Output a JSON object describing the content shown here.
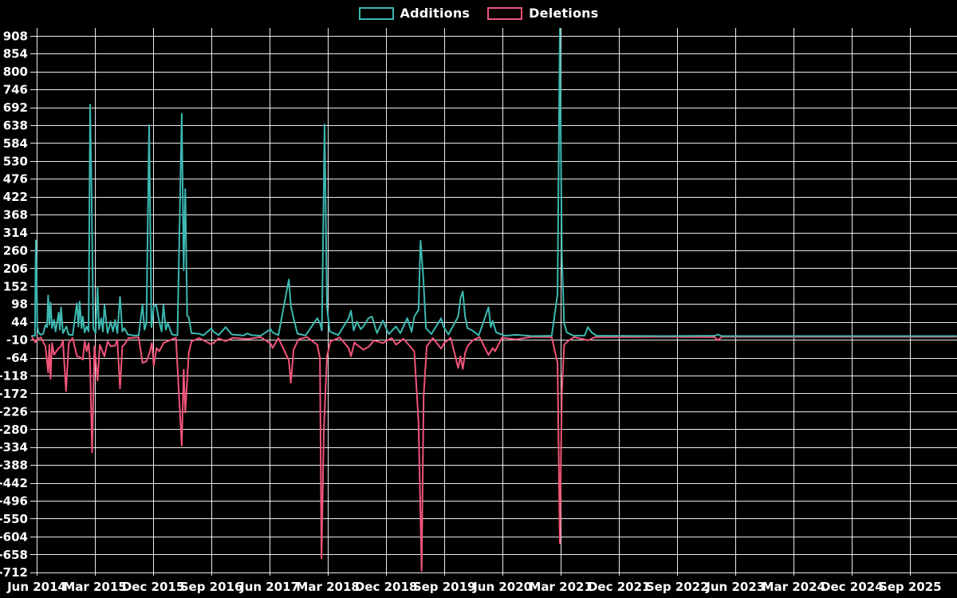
{
  "chart_data": {
    "type": "line",
    "title": "",
    "legend_position": "top-center",
    "grid": true,
    "background_color": "#000000",
    "text_color": "#ffffff",
    "grid_color": "#ffffff",
    "legend": [
      {
        "name": "Additions",
        "color": "#3cb8b0"
      },
      {
        "name": "Deletions",
        "color": "#f25579"
      }
    ],
    "x_axis": {
      "tick_labels": [
        "Jun 2014",
        "Mar 2015",
        "Dec 2015",
        "Sep 2016",
        "Jun 2017",
        "Mar 2018",
        "Dec 2018",
        "Sep 2019",
        "Jun 2020",
        "Mar 2021",
        "Dec 2021",
        "Sep 2022",
        "Jun 2023",
        "Mar 2024",
        "Dec 2024",
        "Sep 2025"
      ],
      "tick_years": [
        2014.417,
        2015.167,
        2015.917,
        2016.667,
        2017.417,
        2018.167,
        2018.917,
        2019.667,
        2020.417,
        2021.167,
        2021.917,
        2022.667,
        2023.417,
        2024.167,
        2024.917,
        2025.667
      ],
      "range_years": [
        2014.355,
        2026.27
      ]
    },
    "y_axis": {
      "ticks": [
        908,
        854,
        800,
        746,
        692,
        638,
        584,
        530,
        476,
        422,
        368,
        314,
        260,
        206,
        152,
        98,
        44,
        -10,
        -64,
        -118,
        -172,
        -226,
        -280,
        -334,
        -388,
        -442,
        -496,
        -550,
        -604,
        -658,
        -712
      ],
      "range": [
        -725,
        935
      ]
    },
    "series": [
      {
        "name": "Additions",
        "color": "#3cb8b0",
        "points": [
          [
            2014.355,
            2
          ],
          [
            2014.395,
            2
          ],
          [
            2014.405,
            290
          ],
          [
            2014.415,
            215
          ],
          [
            2014.425,
            30
          ],
          [
            2014.44,
            12
          ],
          [
            2014.47,
            5
          ],
          [
            2014.5,
            8
          ],
          [
            2014.53,
            35
          ],
          [
            2014.55,
            28
          ],
          [
            2014.565,
            124
          ],
          [
            2014.58,
            35
          ],
          [
            2014.595,
            103
          ],
          [
            2014.615,
            25
          ],
          [
            2014.64,
            50
          ],
          [
            2014.66,
            15
          ],
          [
            2014.7,
            72
          ],
          [
            2014.715,
            20
          ],
          [
            2014.73,
            88
          ],
          [
            2014.755,
            10
          ],
          [
            2014.8,
            30
          ],
          [
            2014.825,
            6
          ],
          [
            2014.88,
            4
          ],
          [
            2014.935,
            100
          ],
          [
            2014.955,
            30
          ],
          [
            2014.97,
            105
          ],
          [
            2014.995,
            25
          ],
          [
            2015.01,
            60
          ],
          [
            2015.035,
            12
          ],
          [
            2015.06,
            30
          ],
          [
            2015.085,
            15
          ],
          [
            2015.105,
            700
          ],
          [
            2015.125,
            410
          ],
          [
            2015.145,
            25
          ],
          [
            2015.175,
            10
          ],
          [
            2015.2,
            150
          ],
          [
            2015.22,
            22
          ],
          [
            2015.25,
            55
          ],
          [
            2015.27,
            15
          ],
          [
            2015.29,
            95
          ],
          [
            2015.33,
            10
          ],
          [
            2015.37,
            45
          ],
          [
            2015.4,
            15
          ],
          [
            2015.425,
            50
          ],
          [
            2015.455,
            10
          ],
          [
            2015.49,
            120
          ],
          [
            2015.52,
            15
          ],
          [
            2015.545,
            25
          ],
          [
            2015.59,
            6
          ],
          [
            2015.66,
            3
          ],
          [
            2015.73,
            3
          ],
          [
            2015.78,
            95
          ],
          [
            2015.805,
            20
          ],
          [
            2015.83,
            40
          ],
          [
            2015.865,
            638
          ],
          [
            2015.895,
            28
          ],
          [
            2015.925,
            90
          ],
          [
            2015.955,
            95
          ],
          [
            2015.995,
            45
          ],
          [
            2016.025,
            15
          ],
          [
            2016.05,
            95
          ],
          [
            2016.08,
            20
          ],
          [
            2016.105,
            40
          ],
          [
            2016.16,
            6
          ],
          [
            2016.23,
            3
          ],
          [
            2016.285,
            672
          ],
          [
            2016.31,
            200
          ],
          [
            2016.33,
            445
          ],
          [
            2016.355,
            62
          ],
          [
            2016.375,
            58
          ],
          [
            2016.41,
            10
          ],
          [
            2016.51,
            8
          ],
          [
            2016.56,
            3
          ],
          [
            2016.665,
            24
          ],
          [
            2016.695,
            14
          ],
          [
            2016.76,
            4
          ],
          [
            2016.85,
            28
          ],
          [
            2016.93,
            6
          ],
          [
            2017.08,
            3
          ],
          [
            2017.13,
            9
          ],
          [
            2017.18,
            4
          ],
          [
            2017.3,
            2
          ],
          [
            2017.43,
            22
          ],
          [
            2017.455,
            12
          ],
          [
            2017.53,
            4
          ],
          [
            2017.665,
            172
          ],
          [
            2017.69,
            92
          ],
          [
            2017.725,
            55
          ],
          [
            2017.775,
            8
          ],
          [
            2017.88,
            3
          ],
          [
            2018.03,
            55
          ],
          [
            2018.065,
            40
          ],
          [
            2018.09,
            18
          ],
          [
            2018.125,
            640
          ],
          [
            2018.155,
            90
          ],
          [
            2018.19,
            15
          ],
          [
            2018.3,
            4
          ],
          [
            2018.435,
            55
          ],
          [
            2018.465,
            78
          ],
          [
            2018.5,
            18
          ],
          [
            2018.54,
            45
          ],
          [
            2018.59,
            22
          ],
          [
            2018.625,
            30
          ],
          [
            2018.69,
            55
          ],
          [
            2018.735,
            60
          ],
          [
            2018.8,
            10
          ],
          [
            2018.875,
            48
          ],
          [
            2018.95,
            7
          ],
          [
            2019.045,
            30
          ],
          [
            2019.1,
            10
          ],
          [
            2019.19,
            55
          ],
          [
            2019.245,
            14
          ],
          [
            2019.28,
            60
          ],
          [
            2019.335,
            80
          ],
          [
            2019.36,
            289
          ],
          [
            2019.395,
            180
          ],
          [
            2019.43,
            25
          ],
          [
            2019.5,
            7
          ],
          [
            2019.625,
            55
          ],
          [
            2019.655,
            30
          ],
          [
            2019.72,
            6
          ],
          [
            2019.845,
            60
          ],
          [
            2019.875,
            115
          ],
          [
            2019.905,
            136
          ],
          [
            2019.935,
            60
          ],
          [
            2019.965,
            25
          ],
          [
            2020.03,
            18
          ],
          [
            2020.11,
            3
          ],
          [
            2020.235,
            88
          ],
          [
            2020.265,
            28
          ],
          [
            2020.29,
            47
          ],
          [
            2020.335,
            12
          ],
          [
            2020.45,
            2
          ],
          [
            2020.59,
            5
          ],
          [
            2020.8,
            1
          ],
          [
            2021.05,
            2
          ],
          [
            2021.125,
            127
          ],
          [
            2021.155,
            930
          ],
          [
            2021.18,
            245
          ],
          [
            2021.21,
            40
          ],
          [
            2021.245,
            12
          ],
          [
            2021.33,
            2
          ],
          [
            2021.475,
            3
          ],
          [
            2021.515,
            28
          ],
          [
            2021.565,
            12
          ],
          [
            2021.63,
            2
          ],
          [
            2022.5,
            1
          ],
          [
            2023.15,
            2
          ],
          [
            2023.19,
            6
          ],
          [
            2023.24,
            1
          ],
          [
            2024.5,
            1
          ],
          [
            2026.26,
            1
          ]
        ]
      },
      {
        "name": "Deletions",
        "color": "#f25579",
        "points": [
          [
            2014.355,
            -1
          ],
          [
            2014.4,
            -18
          ],
          [
            2014.425,
            -8
          ],
          [
            2014.47,
            -3
          ],
          [
            2014.53,
            -30
          ],
          [
            2014.565,
            -109
          ],
          [
            2014.58,
            -25
          ],
          [
            2014.595,
            -128
          ],
          [
            2014.615,
            -20
          ],
          [
            2014.64,
            -55
          ],
          [
            2014.7,
            -35
          ],
          [
            2014.73,
            -30
          ],
          [
            2014.755,
            -12
          ],
          [
            2014.795,
            -165
          ],
          [
            2014.83,
            -20
          ],
          [
            2014.88,
            -5
          ],
          [
            2014.935,
            -60
          ],
          [
            2014.97,
            -62
          ],
          [
            2015.01,
            -70
          ],
          [
            2015.035,
            -15
          ],
          [
            2015.06,
            -45
          ],
          [
            2015.085,
            -20
          ],
          [
            2015.105,
            -80
          ],
          [
            2015.13,
            -350
          ],
          [
            2015.16,
            -30
          ],
          [
            2015.2,
            -133
          ],
          [
            2015.23,
            -25
          ],
          [
            2015.255,
            -40
          ],
          [
            2015.29,
            -60
          ],
          [
            2015.33,
            -15
          ],
          [
            2015.37,
            -30
          ],
          [
            2015.425,
            -28
          ],
          [
            2015.455,
            -10
          ],
          [
            2015.49,
            -157
          ],
          [
            2015.52,
            -30
          ],
          [
            2015.545,
            -25
          ],
          [
            2015.6,
            -5
          ],
          [
            2015.73,
            -3
          ],
          [
            2015.78,
            -80
          ],
          [
            2015.83,
            -75
          ],
          [
            2015.87,
            -50
          ],
          [
            2015.9,
            -20
          ],
          [
            2015.925,
            -88
          ],
          [
            2015.96,
            -35
          ],
          [
            2015.995,
            -45
          ],
          [
            2016.05,
            -20
          ],
          [
            2016.105,
            -14
          ],
          [
            2016.21,
            -4
          ],
          [
            2016.285,
            -330
          ],
          [
            2016.31,
            -100
          ],
          [
            2016.33,
            -230
          ],
          [
            2016.375,
            -50
          ],
          [
            2016.41,
            -15
          ],
          [
            2016.51,
            -5
          ],
          [
            2016.665,
            -24
          ],
          [
            2016.695,
            -20
          ],
          [
            2016.76,
            -6
          ],
          [
            2016.85,
            -14
          ],
          [
            2016.95,
            -4
          ],
          [
            2017.13,
            -8
          ],
          [
            2017.3,
            -2
          ],
          [
            2017.43,
            -22
          ],
          [
            2017.455,
            -35
          ],
          [
            2017.53,
            -5
          ],
          [
            2017.665,
            -72
          ],
          [
            2017.69,
            -140
          ],
          [
            2017.725,
            -40
          ],
          [
            2017.79,
            -8
          ],
          [
            2017.9,
            -2
          ],
          [
            2018.03,
            -25
          ],
          [
            2018.065,
            -65
          ],
          [
            2018.085,
            -670
          ],
          [
            2018.115,
            -280
          ],
          [
            2018.155,
            -60
          ],
          [
            2018.2,
            -15
          ],
          [
            2018.32,
            -3
          ],
          [
            2018.435,
            -35
          ],
          [
            2018.465,
            -60
          ],
          [
            2018.51,
            -18
          ],
          [
            2018.54,
            -25
          ],
          [
            2018.625,
            -40
          ],
          [
            2018.7,
            -30
          ],
          [
            2018.76,
            -12
          ],
          [
            2018.875,
            -20
          ],
          [
            2018.99,
            -5
          ],
          [
            2019.045,
            -25
          ],
          [
            2019.14,
            -7
          ],
          [
            2019.19,
            -20
          ],
          [
            2019.28,
            -45
          ],
          [
            2019.335,
            -258
          ],
          [
            2019.375,
            -708
          ],
          [
            2019.4,
            -180
          ],
          [
            2019.44,
            -30
          ],
          [
            2019.52,
            -5
          ],
          [
            2019.625,
            -37
          ],
          [
            2019.665,
            -20
          ],
          [
            2019.75,
            -4
          ],
          [
            2019.845,
            -95
          ],
          [
            2019.875,
            -60
          ],
          [
            2019.905,
            -98
          ],
          [
            2019.935,
            -50
          ],
          [
            2019.965,
            -30
          ],
          [
            2020.03,
            -12
          ],
          [
            2020.12,
            -2
          ],
          [
            2020.235,
            -56
          ],
          [
            2020.29,
            -35
          ],
          [
            2020.32,
            -45
          ],
          [
            2020.41,
            -4
          ],
          [
            2020.59,
            -9
          ],
          [
            2020.8,
            -1
          ],
          [
            2021.05,
            -2
          ],
          [
            2021.125,
            -80
          ],
          [
            2021.155,
            -625
          ],
          [
            2021.18,
            -169
          ],
          [
            2021.21,
            -25
          ],
          [
            2021.26,
            -14
          ],
          [
            2021.34,
            -2
          ],
          [
            2021.515,
            -12
          ],
          [
            2021.61,
            -2
          ],
          [
            2022.5,
            -1
          ],
          [
            2023.15,
            -2
          ],
          [
            2023.19,
            -12
          ],
          [
            2023.24,
            -1
          ],
          [
            2024.5,
            -1
          ],
          [
            2026.26,
            -1
          ]
        ]
      }
    ]
  }
}
